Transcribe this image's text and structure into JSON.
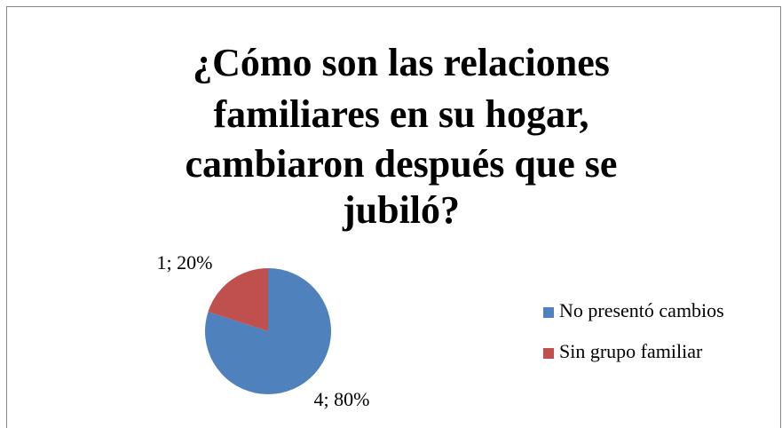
{
  "chart_data": {
    "type": "pie",
    "title_lines": [
      "¿Cómo son las relaciones",
      "familiares en su hogar,",
      "cambiaron después que se",
      "jubiló?"
    ],
    "categories": [
      "No presentó cambios",
      "Sin grupo familiar"
    ],
    "values": [
      4,
      1
    ],
    "value_labels": [
      "4; 80%",
      "1; 20%"
    ],
    "colors": [
      "#4f81bd",
      "#c0504d"
    ],
    "legend": "right"
  }
}
